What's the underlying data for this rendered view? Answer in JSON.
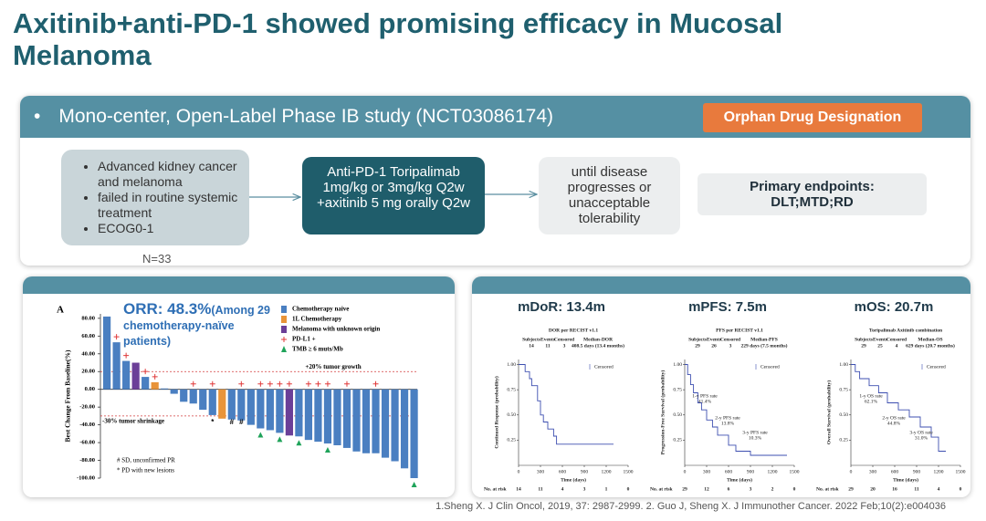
{
  "header": {
    "title": "Axitinib+anti-PD-1 showed promising efficacy in Mucosal Melanoma"
  },
  "study": {
    "design": "Mono-center, Open-Label Phase IB study (NCT03086174)",
    "badge": "Orphan Drug Designation",
    "population": [
      "Advanced kidney cancer and melanoma",
      "failed in routine systemic treatment",
      "ECOG0-1"
    ],
    "n": "N=33",
    "treatment": "Anti-PD-1 Toripalimab 1mg/kg or 3mg/kg Q2w +axitinib 5 mg orally Q2w",
    "duration": "until disease progresses or unacceptable tolerability",
    "endpoints_title": "Primary endpoints:",
    "endpoints": "DLT;MTD;RD"
  },
  "chart_data": [
    {
      "type": "bar",
      "panel": "A",
      "title": "ORR: 48.3%",
      "subtitle": "(Among 29 chemotherapy-naïve patients)",
      "ylabel": "Best Change From Baseline(%)",
      "ylim": [
        -100,
        85
      ],
      "yticks": [
        {
          "value": 80,
          "label": "80.00"
        },
        {
          "value": 60,
          "label": "60.00"
        },
        {
          "value": 40,
          "label": "40.00"
        },
        {
          "value": 20,
          "label": "20.00"
        },
        {
          "value": 0,
          "label": "0.00"
        },
        {
          "value": -20,
          "label": "-20.00"
        },
        {
          "value": -40,
          "label": "-40.00"
        },
        {
          "value": -60,
          "label": "-60.00"
        },
        {
          "value": -80,
          "label": "-80.00"
        },
        {
          "value": -100,
          "label": "-100.00"
        }
      ],
      "values": [
        82,
        53,
        32,
        30,
        14,
        8,
        1,
        -5,
        -14,
        -16,
        -23,
        -29,
        -33,
        -34,
        -35,
        -40,
        -44,
        -46,
        -49,
        -52,
        -53,
        -57,
        -59,
        -61,
        -63,
        -66,
        -70,
        -72,
        -72,
        -77,
        -81,
        -89,
        -100
      ],
      "colors": [
        "#4a7fc1",
        "#4a7fc1",
        "#4a7fc1",
        "#6b3f98",
        "#4a7fc1",
        "#e8943a",
        "#4a7fc1",
        "#4a7fc1",
        "#4a7fc1",
        "#4a7fc1",
        "#4a7fc1",
        "#4a7fc1",
        "#e8943a",
        "#4a7fc1",
        "#4a7fc1",
        "#4a7fc1",
        "#4a7fc1",
        "#4a7fc1",
        "#4a7fc1",
        "#6b3f98",
        "#4a7fc1",
        "#4a7fc1",
        "#4a7fc1",
        "#4a7fc1",
        "#4a7fc1",
        "#4a7fc1",
        "#4a7fc1",
        "#4a7fc1",
        "#4a7fc1",
        "#4a7fc1",
        "#4a7fc1",
        "#4a7fc1",
        "#4a7fc1"
      ],
      "pdl1_positive": [
        false,
        true,
        true,
        false,
        true,
        true,
        false,
        false,
        false,
        true,
        false,
        true,
        false,
        false,
        true,
        false,
        true,
        true,
        true,
        true,
        false,
        true,
        true,
        true,
        false,
        true,
        false,
        false,
        true,
        false,
        false,
        false,
        false
      ],
      "tmb_high": [
        false,
        false,
        false,
        false,
        false,
        false,
        false,
        false,
        false,
        false,
        false,
        false,
        false,
        false,
        false,
        false,
        true,
        false,
        true,
        false,
        true,
        false,
        false,
        true,
        false,
        false,
        false,
        false,
        false,
        false,
        false,
        false,
        true
      ],
      "symbols": [
        null,
        null,
        null,
        null,
        null,
        null,
        null,
        null,
        null,
        null,
        null,
        "*",
        null,
        "#",
        "#",
        null,
        null,
        null,
        null,
        null,
        null,
        null,
        null,
        null,
        null,
        null,
        null,
        null,
        null,
        null,
        null,
        null,
        null
      ],
      "reference_lines": [
        {
          "value": 20,
          "label": "+20% tumor growth"
        },
        {
          "value": -30,
          "label": "-30% tumor shrinkage"
        }
      ],
      "legend": [
        {
          "name": "Chemotherapy naive",
          "color": "#4a7fc1",
          "marker": "bar"
        },
        {
          "name": "1L Chemotherapy",
          "color": "#e8943a",
          "marker": "bar"
        },
        {
          "name": "Melanoma with unknown origin",
          "color": "#6b3f98",
          "marker": "bar"
        },
        {
          "name": "PD-L1 +",
          "color": "#e03a3a",
          "marker": "plus"
        },
        {
          "name": "TMB ≥ 6 muts/Mb",
          "color": "#1fa35a",
          "marker": "triangle"
        }
      ],
      "notes": [
        "# SD, unconfirmed PR",
        "* PD with new lesions"
      ]
    },
    {
      "type": "km",
      "title": "mDoR: 13.4m",
      "plot_title": "DOR per RECIST v1.1",
      "stats_header": [
        "Subjects",
        "Events",
        "Censored",
        "Median-DOR"
      ],
      "stats": [
        14,
        11,
        3,
        "408.5 days (13.4 months)"
      ],
      "legend": "Censored",
      "ylabel": "Continued Response (probability)",
      "xlabel": "Time (days)",
      "xlim": [
        0,
        1500
      ],
      "xticks": [
        0,
        300,
        600,
        900,
        1200,
        1500
      ],
      "ylim": [
        0,
        1.05
      ],
      "yticks": [
        0.25,
        {
          "value": 0.5,
          "label": "0.50"
        },
        0.75,
        {
          "value": 1,
          "label": "1.00"
        }
      ],
      "color": "#3d4fb0",
      "x": [
        0,
        90,
        90,
        150,
        150,
        180,
        180,
        260,
        260,
        300,
        300,
        340,
        340,
        400,
        400,
        480,
        480,
        520,
        520,
        1300
      ],
      "values": [
        1,
        1,
        0.93,
        0.93,
        0.86,
        0.86,
        0.79,
        0.79,
        0.64,
        0.64,
        0.5,
        0.5,
        0.43,
        0.43,
        0.36,
        0.36,
        0.29,
        0.29,
        0.21,
        0.21
      ],
      "risk_label": "No. at risk",
      "at_risk": [
        14,
        11,
        4,
        3,
        1,
        0
      ],
      "annotations": []
    },
    {
      "type": "km",
      "title": "mPFS: 7.5m",
      "plot_title": "PFS per RECIST v1.1",
      "stats_header": [
        "Subjects",
        "Events",
        "Censored",
        "Median-PFS"
      ],
      "stats": [
        29,
        26,
        3,
        "229 days (7.5 months)"
      ],
      "legend": "Censored",
      "ylabel": "Progression-Free Survival (probability)",
      "xlabel": "Time (days)",
      "xlim": [
        0,
        1500
      ],
      "xticks": [
        0,
        300,
        600,
        900,
        1200,
        1500
      ],
      "ylim": [
        0,
        1.05
      ],
      "yticks": [
        0.25,
        {
          "value": 0.5,
          "label": "0.50"
        },
        0.75,
        {
          "value": 1,
          "label": "1.00"
        }
      ],
      "color": "#3d4fb0",
      "x": [
        0,
        40,
        40,
        80,
        80,
        120,
        120,
        180,
        180,
        230,
        230,
        300,
        300,
        380,
        380,
        450,
        450,
        600,
        600,
        700,
        700,
        900,
        900,
        1400
      ],
      "values": [
        1,
        1,
        0.9,
        0.9,
        0.8,
        0.8,
        0.72,
        0.72,
        0.62,
        0.62,
        0.55,
        0.55,
        0.45,
        0.45,
        0.38,
        0.38,
        0.3,
        0.3,
        0.2,
        0.2,
        0.14,
        0.14,
        0.1,
        0.1
      ],
      "risk_label": "No. at risk",
      "at_risk": [
        29,
        12,
        6,
        3,
        2,
        0
      ],
      "annotations": [
        {
          "text": "1-y PFS rate",
          "rate": "41.4%"
        },
        {
          "text": "2-y PFS rate",
          "rate": "13.8%"
        },
        {
          "text": "3-y PFS rate",
          "rate": "10.3%"
        }
      ]
    },
    {
      "type": "km",
      "title": "mOS: 20.7m",
      "plot_title": "Toripalimab Axitinib combination",
      "stats_header": [
        "Subjects",
        "Events",
        "Censored",
        "Median-OS"
      ],
      "stats": [
        29,
        25,
        4,
        "629 days (20.7 months)"
      ],
      "legend": "Censored",
      "ylabel": "Overall Survival (probability)",
      "xlabel": "Time (days)",
      "xlim": [
        0,
        1500
      ],
      "xticks": [
        0,
        300,
        600,
        900,
        1200,
        1500
      ],
      "ylim": [
        0,
        1.05
      ],
      "yticks": [
        0.25,
        {
          "value": 0.5,
          "label": "0.50"
        },
        0.75,
        {
          "value": 1,
          "label": "1.00"
        }
      ],
      "color": "#3d4fb0",
      "x": [
        0,
        60,
        60,
        120,
        120,
        250,
        250,
        380,
        380,
        500,
        500,
        650,
        650,
        800,
        800,
        950,
        950,
        1100,
        1100,
        1200,
        1200,
        1300
      ],
      "values": [
        1,
        1,
        0.93,
        0.93,
        0.86,
        0.86,
        0.79,
        0.79,
        0.72,
        0.72,
        0.62,
        0.62,
        0.55,
        0.55,
        0.48,
        0.48,
        0.38,
        0.38,
        0.28,
        0.28,
        0.14,
        0.14
      ],
      "risk_label": "No. at risk",
      "at_risk": [
        29,
        20,
        16,
        11,
        4,
        0
      ],
      "annotations": [
        {
          "text": "1-y OS rate",
          "rate": "62.1%"
        },
        {
          "text": "2-y OS rate",
          "rate": "44.8%"
        },
        {
          "text": "3-y OS rate",
          "rate": "31.0%"
        }
      ]
    }
  ],
  "footer": {
    "reference": "1.Sheng X. J Clin Oncol, 2019, 37: 2987-2999. 2. Guo J, Sheng X. J Immunother Cancer. 2022 Feb;10(2):e004036"
  }
}
